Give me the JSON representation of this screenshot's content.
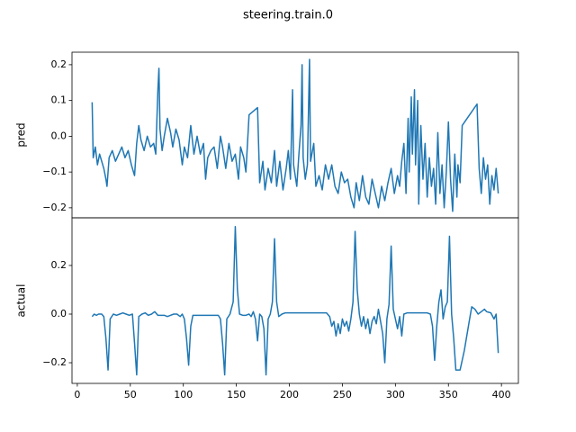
{
  "chart_data": [
    {
      "type": "line",
      "title": "steering.train.0",
      "ylabel": "pred",
      "color": "#1f77b4",
      "xlim": [
        -5,
        416
      ],
      "ylim": [
        -0.228,
        0.235
      ],
      "yticks": [
        {
          "value": -0.2,
          "label": "−0.2"
        },
        {
          "value": -0.1,
          "label": "−0.1"
        },
        {
          "value": 0,
          "label": "0.0"
        },
        0.1,
        0.2
      ],
      "x": [
        14,
        15,
        17,
        19,
        21,
        23,
        25,
        27,
        28,
        30,
        33,
        36,
        39,
        42,
        45,
        48,
        51,
        54,
        56,
        58,
        60,
        63,
        66,
        69,
        72,
        74,
        76,
        77,
        78,
        80,
        82,
        85,
        88,
        90,
        93,
        96,
        99,
        101,
        104,
        107,
        110,
        113,
        116,
        119,
        121,
        123,
        126,
        129,
        132,
        135,
        137,
        140,
        143,
        146,
        149,
        152,
        154,
        157,
        159,
        162,
        170,
        172,
        175,
        177,
        180,
        183,
        186,
        188,
        191,
        194,
        197,
        199,
        201,
        203,
        204,
        207,
        209,
        211,
        212,
        213,
        215,
        217,
        219,
        220,
        223,
        225,
        228,
        231,
        234,
        237,
        240,
        243,
        246,
        249,
        252,
        255,
        258,
        261,
        263,
        266,
        269,
        272,
        275,
        278,
        281,
        284,
        287,
        290,
        293,
        296,
        299,
        302,
        304,
        306,
        308,
        310,
        312,
        313,
        315,
        316,
        318,
        319,
        321,
        322,
        324,
        326,
        328,
        330,
        332,
        334,
        336,
        338,
        340,
        342,
        344,
        346,
        348,
        350,
        352,
        354,
        356,
        358,
        359,
        361,
        363,
        377,
        379,
        381,
        383,
        385,
        387,
        389,
        391,
        393,
        395,
        397
      ],
      "values": [
        0.095,
        -0.06,
        -0.03,
        -0.08,
        -0.05,
        -0.07,
        -0.09,
        -0.12,
        -0.14,
        -0.06,
        -0.04,
        -0.07,
        -0.05,
        -0.03,
        -0.06,
        -0.04,
        -0.08,
        -0.11,
        -0.02,
        0.03,
        -0.01,
        -0.04,
        0.0,
        -0.03,
        -0.02,
        -0.05,
        0.13,
        0.19,
        0.02,
        -0.04,
        0.0,
        0.05,
        0.01,
        -0.03,
        0.02,
        -0.01,
        -0.08,
        -0.03,
        -0.06,
        0.03,
        -0.05,
        0.0,
        -0.05,
        -0.02,
        -0.12,
        -0.06,
        -0.04,
        -0.03,
        -0.09,
        0.0,
        -0.03,
        -0.09,
        -0.02,
        -0.07,
        -0.05,
        -0.12,
        -0.03,
        -0.06,
        -0.1,
        0.06,
        0.08,
        -0.13,
        -0.07,
        -0.15,
        -0.09,
        -0.13,
        -0.04,
        -0.14,
        -0.07,
        -0.15,
        -0.09,
        -0.04,
        -0.12,
        0.13,
        -0.08,
        -0.14,
        -0.05,
        0.03,
        0.2,
        -0.06,
        -0.12,
        -0.08,
        0.215,
        -0.07,
        -0.02,
        -0.14,
        -0.11,
        -0.15,
        -0.08,
        -0.12,
        -0.08,
        -0.14,
        -0.16,
        -0.1,
        -0.13,
        -0.12,
        -0.17,
        -0.2,
        -0.13,
        -0.18,
        -0.11,
        -0.17,
        -0.19,
        -0.12,
        -0.16,
        -0.2,
        -0.14,
        -0.18,
        -0.13,
        -0.09,
        -0.16,
        -0.11,
        -0.14,
        -0.07,
        -0.02,
        -0.16,
        0.05,
        -0.1,
        0.11,
        -0.05,
        0.13,
        -0.08,
        0.1,
        -0.19,
        0.03,
        -0.12,
        -0.02,
        -0.17,
        -0.06,
        -0.14,
        -0.09,
        -0.19,
        0.01,
        -0.16,
        -0.08,
        -0.2,
        -0.1,
        0.04,
        -0.12,
        -0.21,
        -0.05,
        -0.17,
        -0.08,
        -0.13,
        0.03,
        0.09,
        -0.09,
        -0.16,
        -0.06,
        -0.12,
        -0.08,
        -0.19,
        -0.11,
        -0.15,
        -0.09,
        -0.16
      ]
    },
    {
      "type": "line",
      "ylabel": "actual",
      "color": "#1f77b4",
      "xlim": [
        -5,
        416
      ],
      "ylim": [
        -0.285,
        0.396
      ],
      "xticks": [
        0,
        50,
        100,
        150,
        200,
        250,
        300,
        350,
        400
      ],
      "yticks": [
        {
          "value": -0.2,
          "label": "−0.2"
        },
        {
          "value": 0,
          "label": "0.0"
        },
        0.2
      ],
      "x": [
        14,
        16,
        18,
        20,
        23,
        25,
        27,
        29,
        31,
        34,
        37,
        40,
        43,
        46,
        49,
        52,
        54,
        56,
        58,
        61,
        64,
        67,
        70,
        73,
        76,
        79,
        82,
        85,
        88,
        91,
        94,
        97,
        99,
        101,
        103,
        105,
        107,
        109,
        112,
        116,
        120,
        125,
        130,
        133,
        135,
        137,
        139,
        141,
        144,
        147,
        149,
        151,
        153,
        156,
        159,
        162,
        164,
        166,
        168,
        170,
        172,
        174,
        176,
        178,
        180,
        182,
        184,
        186,
        188,
        190,
        193,
        196,
        200,
        210,
        220,
        230,
        235,
        238,
        240,
        242,
        244,
        246,
        248,
        250,
        252,
        254,
        256,
        258,
        260,
        262,
        264,
        266,
        268,
        270,
        272,
        274,
        276,
        278,
        280,
        282,
        284,
        286,
        288,
        290,
        292,
        294,
        296,
        298,
        300,
        302,
        304,
        306,
        308,
        311,
        315,
        320,
        325,
        330,
        333,
        335,
        337,
        339,
        341,
        343,
        345,
        347,
        349,
        351,
        353,
        355,
        357,
        361,
        365,
        370,
        372,
        375,
        378,
        381,
        384,
        386,
        390,
        393,
        395,
        397
      ],
      "values": [
        -0.01,
        0.0,
        -0.005,
        0.0,
        0.0,
        -0.01,
        -0.1,
        -0.23,
        -0.02,
        0.0,
        -0.005,
        0.0,
        0.005,
        0.0,
        -0.005,
        0.0,
        -0.12,
        -0.25,
        -0.01,
        0.0,
        0.005,
        -0.005,
        0.0,
        0.01,
        -0.005,
        -0.005,
        -0.005,
        -0.01,
        -0.005,
        0.0,
        0.0,
        -0.01,
        0.0,
        -0.02,
        -0.1,
        -0.21,
        -0.05,
        -0.005,
        -0.005,
        -0.005,
        -0.005,
        -0.005,
        -0.005,
        -0.005,
        -0.02,
        -0.12,
        -0.25,
        -0.02,
        0.0,
        0.05,
        0.36,
        0.1,
        0.0,
        -0.005,
        -0.005,
        0.0,
        -0.01,
        0.01,
        -0.02,
        -0.11,
        0.0,
        -0.01,
        -0.06,
        -0.25,
        -0.02,
        0.0,
        0.05,
        0.31,
        0.05,
        -0.01,
        0.0,
        0.005,
        0.005,
        0.005,
        0.005,
        0.005,
        0.005,
        -0.01,
        -0.05,
        -0.03,
        -0.09,
        -0.04,
        -0.08,
        -0.02,
        -0.05,
        -0.03,
        -0.07,
        -0.02,
        0.05,
        0.34,
        0.1,
        0.0,
        -0.05,
        -0.01,
        -0.06,
        -0.02,
        -0.08,
        -0.03,
        -0.01,
        -0.04,
        0.02,
        -0.03,
        -0.08,
        -0.2,
        -0.02,
        0.04,
        0.28,
        0.02,
        -0.02,
        -0.06,
        -0.01,
        -0.09,
        0.0,
        0.005,
        0.005,
        0.005,
        0.005,
        0.005,
        0.0,
        -0.05,
        -0.19,
        -0.05,
        0.05,
        0.1,
        -0.02,
        0.03,
        0.05,
        0.32,
        0.0,
        -0.1,
        -0.23,
        -0.23,
        -0.15,
        -0.02,
        0.03,
        0.02,
        0.0,
        0.01,
        0.02,
        0.01,
        0.005,
        -0.02,
        0.0,
        -0.16
      ]
    }
  ]
}
